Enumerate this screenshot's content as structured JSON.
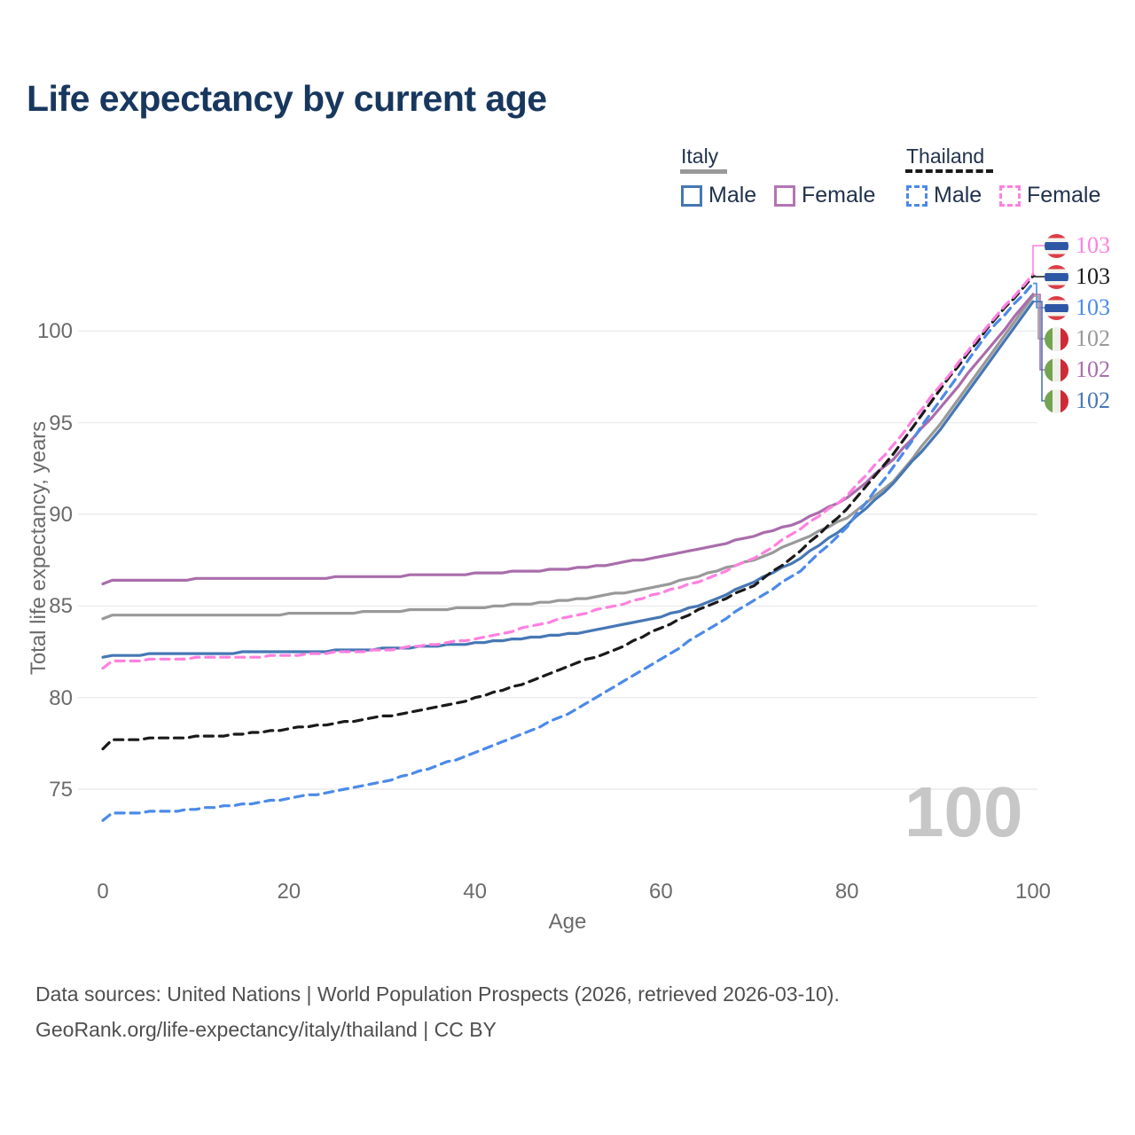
{
  "title": "Life expectancy by current age",
  "watermark": "100",
  "footer": {
    "line1": "Data sources: United Nations | World Population Prospects (2026, retrieved 2026-03-10).",
    "line2": "GeoRank.org/life-expectancy/italy/thailand | CC BY"
  },
  "legend": {
    "groups": [
      {
        "country": "Italy",
        "underline": "solid",
        "underline_color": "#999999",
        "items": [
          {
            "label": "Male",
            "color": "#4677b4",
            "dashed": false
          },
          {
            "label": "Female",
            "color": "#b474b4",
            "dashed": false
          }
        ]
      },
      {
        "country": "Thailand",
        "underline": "dashed",
        "underline_color": "#1a1a1a",
        "items": [
          {
            "label": "Male",
            "color": "#4b8ae8",
            "dashed": true
          },
          {
            "label": "Female",
            "color": "#ff80df",
            "dashed": true
          }
        ]
      }
    ]
  },
  "chart_data": {
    "type": "line",
    "title": "Life expectancy by current age",
    "xlabel": "Age",
    "ylabel": "Total life expectancy, years",
    "x_ticks": [
      0,
      20,
      40,
      60,
      80,
      100
    ],
    "y_ticks": [
      75,
      80,
      85,
      90,
      95,
      100
    ],
    "xlim": [
      0,
      100
    ],
    "ylim": [
      73,
      103.5
    ],
    "grid": "horizontal",
    "legend_position": "top-right",
    "x": [
      0,
      1,
      5,
      10,
      15,
      20,
      25,
      30,
      35,
      40,
      45,
      50,
      55,
      60,
      65,
      70,
      75,
      80,
      85,
      90,
      95,
      100
    ],
    "series": [
      {
        "id": "italy_both",
        "name": "Italy (both sexes)",
        "country": "Italy",
        "sex": "Both",
        "color": "#999999",
        "dashed": false,
        "end_label": "102",
        "values": [
          84.3,
          84.45,
          84.5,
          84.5,
          84.5,
          84.55,
          84.6,
          84.7,
          84.8,
          84.9,
          85.1,
          85.3,
          85.65,
          86.1,
          86.75,
          87.5,
          88.6,
          89.8,
          91.8,
          94.9,
          98.4,
          101.9
        ]
      },
      {
        "id": "italy_female",
        "name": "Italy Female",
        "country": "Italy",
        "sex": "Female",
        "color": "#a96dab",
        "dashed": false,
        "end_label": "102",
        "values": [
          86.2,
          86.35,
          86.4,
          86.45,
          86.5,
          86.5,
          86.55,
          86.6,
          86.7,
          86.75,
          86.9,
          87.0,
          87.3,
          87.7,
          88.2,
          88.8,
          89.6,
          90.9,
          93.0,
          95.8,
          98.9,
          102.0
        ]
      },
      {
        "id": "italy_male",
        "name": "Italy Male",
        "country": "Italy",
        "sex": "Male",
        "color": "#4677b4",
        "dashed": false,
        "end_label": "102",
        "values": [
          82.2,
          82.3,
          82.35,
          82.4,
          82.45,
          82.5,
          82.55,
          82.65,
          82.8,
          82.95,
          83.2,
          83.45,
          83.85,
          84.4,
          85.2,
          86.3,
          87.6,
          89.4,
          91.7,
          94.6,
          98.1,
          101.6
        ]
      },
      {
        "id": "thailand_both",
        "name": "Thailand (both sexes)",
        "country": "Thailand",
        "sex": "Both",
        "color": "#1a1a1a",
        "dashed": true,
        "end_label": "103",
        "values": [
          77.2,
          77.65,
          77.75,
          77.85,
          78.0,
          78.3,
          78.6,
          78.95,
          79.4,
          79.95,
          80.7,
          81.7,
          82.6,
          83.8,
          85.0,
          86.1,
          88.0,
          90.3,
          93.3,
          96.8,
          100.1,
          103.0
        ]
      },
      {
        "id": "thailand_male",
        "name": "Thailand Male",
        "country": "Thailand",
        "sex": "Male",
        "color": "#4b8ae8",
        "dashed": true,
        "end_label": "103",
        "values": [
          73.3,
          73.65,
          73.75,
          73.9,
          74.15,
          74.5,
          74.9,
          75.4,
          76.1,
          77.0,
          78.0,
          79.1,
          80.6,
          82.1,
          83.7,
          85.3,
          86.9,
          89.3,
          92.6,
          96.2,
          99.8,
          102.6
        ]
      },
      {
        "id": "thailand_female",
        "name": "Thailand Female",
        "country": "Thailand",
        "sex": "Female",
        "color": "#ff80df",
        "dashed": true,
        "end_label": "103",
        "values": [
          81.6,
          81.95,
          82.05,
          82.15,
          82.2,
          82.3,
          82.45,
          82.6,
          82.85,
          83.2,
          83.75,
          84.4,
          85.0,
          85.7,
          86.5,
          87.6,
          89.2,
          91.0,
          93.8,
          97.0,
          100.2,
          103.1
        ]
      }
    ],
    "end_rows": [
      {
        "series": "thailand_female",
        "label": "103",
        "flag": "thailand"
      },
      {
        "series": "thailand_both",
        "label": "103",
        "flag": "thailand"
      },
      {
        "series": "thailand_male",
        "label": "103",
        "flag": "thailand"
      },
      {
        "series": "italy_both",
        "label": "102",
        "flag": "italy"
      },
      {
        "series": "italy_female",
        "label": "102",
        "flag": "italy"
      },
      {
        "series": "italy_male",
        "label": "102",
        "flag": "italy"
      }
    ]
  }
}
